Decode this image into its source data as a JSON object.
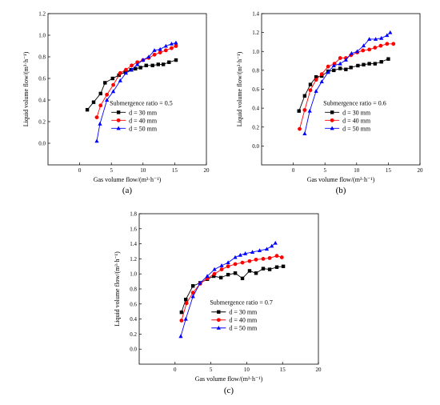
{
  "chart_data": [
    {
      "type": "line",
      "panel_label": "(a)",
      "xlabel": "Gas volume flow/(m³·h⁻¹)",
      "ylabel": "Liquid volume flow/(m³·h⁻¹)",
      "xlim": [
        -5,
        20
      ],
      "ylim": [
        -0.2,
        1.2
      ],
      "xticks": [
        0,
        5,
        10,
        15,
        20
      ],
      "yticks": [
        0.0,
        0.2,
        0.4,
        0.6,
        0.8,
        1.0,
        1.2
      ],
      "grid": false,
      "legend_position": "bottom-right",
      "legend_title": "Submergence ratio = 0.5",
      "series": [
        {
          "name": "d = 30 mm",
          "marker": "square",
          "color": "#000000",
          "x": [
            1.2,
            2.2,
            3.3,
            4.0,
            5.2,
            6.2,
            7.2,
            8.1,
            8.8,
            9.6,
            10.5,
            11.5,
            12.4,
            13.2,
            14.1,
            15.2
          ],
          "y": [
            0.31,
            0.38,
            0.46,
            0.56,
            0.6,
            0.63,
            0.66,
            0.68,
            0.69,
            0.7,
            0.72,
            0.72,
            0.73,
            0.73,
            0.75,
            0.77
          ]
        },
        {
          "name": "d = 40 mm",
          "marker": "circle",
          "color": "#ff0000",
          "x": [
            2.7,
            3.3,
            4.3,
            5.3,
            6.4,
            7.3,
            8.2,
            9.1,
            10.0,
            10.9,
            11.8,
            12.7,
            13.6,
            14.5,
            15.2
          ],
          "y": [
            0.24,
            0.35,
            0.45,
            0.54,
            0.65,
            0.68,
            0.72,
            0.75,
            0.77,
            0.79,
            0.82,
            0.84,
            0.86,
            0.88,
            0.9
          ]
        },
        {
          "name": "d = 50 mm",
          "marker": "triangle",
          "color": "#0000ff",
          "x": [
            2.7,
            3.2,
            4.3,
            5.3,
            6.4,
            7.3,
            8.2,
            9.1,
            10.0,
            10.9,
            11.8,
            12.7,
            13.6,
            14.5,
            15.2
          ],
          "y": [
            0.02,
            0.18,
            0.4,
            0.48,
            0.58,
            0.65,
            0.68,
            0.73,
            0.77,
            0.8,
            0.86,
            0.87,
            0.9,
            0.92,
            0.93
          ]
        }
      ]
    },
    {
      "type": "line",
      "panel_label": "(b)",
      "xlabel": "Gas volume flow/(m³·h⁻¹)",
      "ylabel": "Liquid volume flow/(m³·h⁻¹)",
      "xlim": [
        -5,
        20
      ],
      "ylim": [
        -0.2,
        1.4
      ],
      "xticks": [
        0,
        5,
        10,
        15,
        20
      ],
      "yticks": [
        0.0,
        0.2,
        0.4,
        0.6,
        0.8,
        1.0,
        1.2,
        1.4
      ],
      "grid": false,
      "legend_position": "bottom-right",
      "legend_title": "Submergence ratio = 0.6",
      "series": [
        {
          "name": "d = 30 mm",
          "marker": "square",
          "color": "#000000",
          "x": [
            0.9,
            1.8,
            2.7,
            3.6,
            4.5,
            5.5,
            6.4,
            7.4,
            8.3,
            9.1,
            10.2,
            11.1,
            12.0,
            12.9,
            13.9,
            15.0
          ],
          "y": [
            0.37,
            0.53,
            0.65,
            0.73,
            0.74,
            0.79,
            0.8,
            0.82,
            0.81,
            0.83,
            0.85,
            0.86,
            0.87,
            0.87,
            0.89,
            0.92
          ]
        },
        {
          "name": "d = 40 mm",
          "marker": "circle",
          "color": "#ff0000",
          "x": [
            1.0,
            1.8,
            2.7,
            3.6,
            4.5,
            5.5,
            6.5,
            7.4,
            8.3,
            9.1,
            10.1,
            11.0,
            12.0,
            12.9,
            13.8,
            14.8,
            15.8
          ],
          "y": [
            0.18,
            0.38,
            0.59,
            0.7,
            0.76,
            0.84,
            0.87,
            0.93,
            0.93,
            0.96,
            0.99,
            1.01,
            1.02,
            1.04,
            1.06,
            1.08,
            1.08
          ]
        },
        {
          "name": "d = 50 mm",
          "marker": "triangle",
          "color": "#0000ff",
          "x": [
            1.8,
            2.6,
            3.6,
            4.5,
            5.5,
            6.4,
            7.4,
            8.3,
            9.2,
            10.1,
            11.1,
            12.0,
            13.0,
            13.9,
            14.8,
            15.3
          ],
          "y": [
            0.13,
            0.37,
            0.58,
            0.68,
            0.78,
            0.85,
            0.87,
            0.91,
            0.98,
            1.0,
            1.06,
            1.13,
            1.13,
            1.14,
            1.17,
            1.2
          ]
        }
      ]
    },
    {
      "type": "line",
      "panel_label": "(c)",
      "xlabel": "Gas volume flow/(m³·h⁻¹)",
      "ylabel": "Liquid volume flow/(m³·h⁻¹)",
      "xlim": [
        -5,
        20
      ],
      "ylim": [
        -0.2,
        1.8
      ],
      "xticks": [
        0,
        5,
        10,
        15,
        20
      ],
      "yticks": [
        0.0,
        0.2,
        0.4,
        0.6,
        0.8,
        1.0,
        1.2,
        1.4,
        1.6,
        1.8
      ],
      "grid": false,
      "legend_position": "bottom-right",
      "legend_title": "Submergence ratio = 0.7",
      "series": [
        {
          "name": "d = 30 mm",
          "marker": "square",
          "color": "#000000",
          "x": [
            0.9,
            1.5,
            2.5,
            3.5,
            4.5,
            5.4,
            6.4,
            7.4,
            8.4,
            9.4,
            10.4,
            11.3,
            12.3,
            13.2,
            14.2,
            15.1
          ],
          "y": [
            0.49,
            0.66,
            0.84,
            0.88,
            0.93,
            0.97,
            0.95,
            0.99,
            1.01,
            0.94,
            1.04,
            1.01,
            1.07,
            1.06,
            1.09,
            1.1
          ]
        },
        {
          "name": "d = 40 mm",
          "marker": "circle",
          "color": "#ff0000",
          "x": [
            0.9,
            1.6,
            2.5,
            3.5,
            4.5,
            5.5,
            6.5,
            7.4,
            8.4,
            9.4,
            10.4,
            11.3,
            12.3,
            13.2,
            14.2,
            14.9
          ],
          "y": [
            0.38,
            0.61,
            0.75,
            0.87,
            0.94,
            1.0,
            1.06,
            1.1,
            1.13,
            1.15,
            1.17,
            1.19,
            1.2,
            1.21,
            1.24,
            1.22
          ]
        },
        {
          "name": "d = 50 mm",
          "marker": "triangle",
          "color": "#0000ff",
          "x": [
            0.8,
            1.5,
            2.5,
            3.5,
            4.5,
            5.5,
            6.5,
            7.4,
            8.4,
            9.1,
            9.8,
            10.8,
            11.8,
            12.8,
            13.5,
            14.0
          ],
          "y": [
            0.17,
            0.4,
            0.7,
            0.88,
            0.97,
            1.06,
            1.11,
            1.15,
            1.22,
            1.25,
            1.27,
            1.29,
            1.31,
            1.33,
            1.37,
            1.41
          ]
        }
      ]
    }
  ]
}
